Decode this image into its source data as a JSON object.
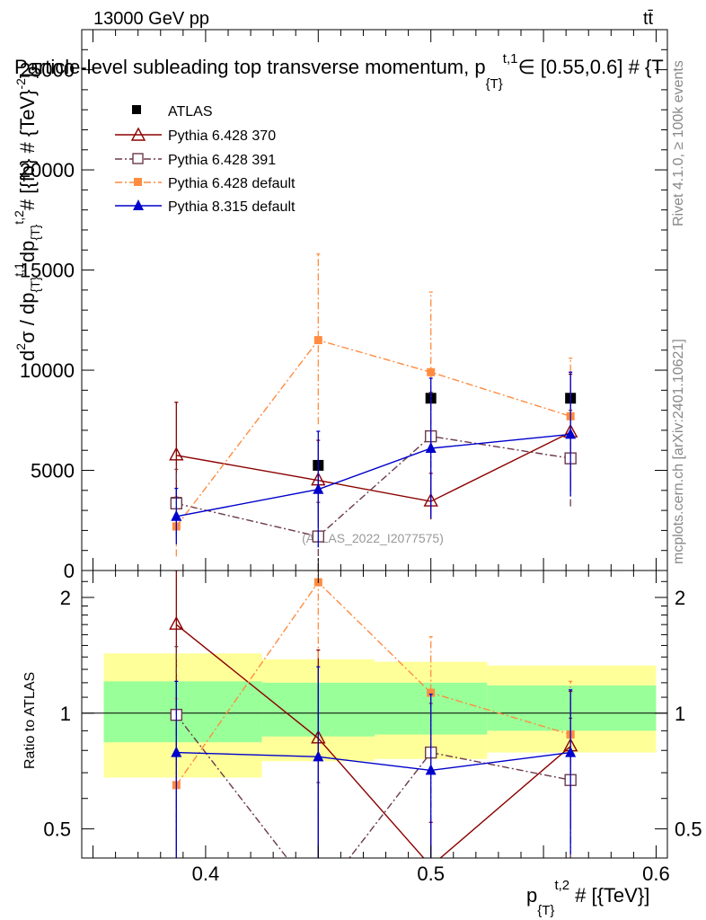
{
  "header": {
    "energy": "13000 GeV pp",
    "process": "tt̄",
    "title": "Particle-level subleading top transverse momentum, p",
    "title_sub": "{T}",
    "title_sup": "t,1",
    "title_tail": "∈ [0.55,0.6] # {T",
    "watermark": "(ATLAS_2022_I2077575)",
    "side_rivet": "Rivet 4.1.0, ≥ 100k events",
    "side_mcplots": "mcplots.cern.ch [arXiv:2401.10621]"
  },
  "main_axes": {
    "ylabel": "d²σ / dp_{T}^{t,1} dp_{T}^{t,2} # [{fb} # {TeV}^{-2}]",
    "ylabel_a": "d",
    "ylabel_b": "σ / dp",
    "ylabel_c": "dp",
    "ylabel_d": "# [{fb} # {TeV}",
    "yticks": [
      "0",
      "5000",
      "10000",
      "15000",
      "20000",
      "25000"
    ]
  },
  "ratio_axes": {
    "ylabel": "Ratio to ATLAS",
    "yticks": [
      "0.5",
      "1",
      "2"
    ]
  },
  "xaxis": {
    "label": "p",
    "label_sub": "{T}",
    "label_sup": "t,2",
    "label_tail": "# [{TeV}]",
    "ticks": [
      "0.4",
      "0.5",
      "0.6"
    ]
  },
  "legend": {
    "atlas": "ATLAS",
    "p370": "Pythia 6.428 370",
    "p391": "Pythia 6.428 391",
    "p6def": "Pythia 6.428 default",
    "p8def": "Pythia 8.315 default"
  },
  "chart_data": {
    "type": "scatter",
    "title": "Particle-level subleading top transverse momentum, p_{T}^{t,1} ∈ [0.55,0.6]",
    "xlabel": "p_{T}^{t,2} # [{TeV}]",
    "ylabel": "d²σ / dp_{T}^{t,1} dp_{T}^{t,2} # [{fb} # {TeV}^{-2}]",
    "xlim": [
      0.345,
      0.605
    ],
    "ylim": [
      0,
      27000
    ],
    "ratio_ylim": [
      0.42,
      2.35
    ],
    "bins": [
      [
        0.35,
        0.425
      ],
      [
        0.425,
        0.475
      ],
      [
        0.475,
        0.525
      ],
      [
        0.525,
        0.6
      ]
    ],
    "x": [
      0.387,
      0.45,
      0.5,
      0.562
    ],
    "series": [
      {
        "name": "ATLAS",
        "color": "#000000",
        "values": [
          3400,
          5250,
          8600,
          8600
        ],
        "err_lo": [
          0,
          0,
          0,
          0
        ],
        "err_hi": [
          0,
          0,
          0,
          0
        ],
        "band_inner": [
          [
            0.84,
            1.21
          ],
          [
            0.87,
            1.2
          ],
          [
            0.88,
            1.2
          ],
          [
            0.9,
            1.18
          ]
        ],
        "band_outer": [
          [
            0.68,
            1.43
          ],
          [
            0.75,
            1.38
          ],
          [
            0.76,
            1.36
          ],
          [
            0.79,
            1.33
          ]
        ],
        "ratio": [
          1,
          1,
          1,
          1
        ]
      },
      {
        "name": "Pythia 6.428 370",
        "color": "#8b0000",
        "values": [
          5750,
          4500,
          3450,
          6900
        ],
        "err_lo": [
          2600,
          2000,
          900,
          2800
        ],
        "err_hi": [
          2650,
          2000,
          1400,
          2900
        ],
        "ratio": [
          1.7,
          0.86,
          0.4,
          0.82
        ],
        "ratio_err_lo": [
          1.36,
          0.6,
          0.1,
          0.32
        ],
        "ratio_err_hi": [
          1.36,
          0.6,
          0.12,
          0.32
        ]
      },
      {
        "name": "Pythia 6.428 391",
        "color": "#6b3a4a",
        "values": [
          3350,
          1700,
          6700,
          5600
        ],
        "err_lo": [
          1700,
          1700,
          2300,
          2400
        ],
        "err_hi": [
          1700,
          1700,
          2200,
          2400
        ],
        "ratio": [
          0.99,
          0.33,
          0.79,
          0.67
        ],
        "ratio_err_lo": [
          0.5,
          0.33,
          0.27,
          0.3
        ],
        "ratio_err_hi": [
          0.5,
          0.33,
          0.27,
          0.3
        ]
      },
      {
        "name": "Pythia 6.428 default",
        "color": "#ff8c40",
        "values": [
          2200,
          11500,
          9900,
          7700
        ],
        "err_lo": [
          1500,
          4200,
          3900,
          2800
        ],
        "err_hi": [
          1500,
          4300,
          4000,
          2900
        ],
        "ratio": [
          0.65,
          2.19,
          1.13,
          0.88
        ],
        "ratio_err_lo": [
          0.44,
          0.8,
          0.45,
          0.33
        ],
        "ratio_err_hi": [
          0.44,
          0.8,
          0.45,
          0.33
        ]
      },
      {
        "name": "Pythia 8.315 default",
        "color": "#0000cc",
        "values": [
          2700,
          4050,
          6100,
          6800
        ],
        "err_lo": [
          1400,
          2900,
          3500,
          3100
        ],
        "err_hi": [
          1400,
          2900,
          3500,
          3100
        ],
        "ratio": [
          0.79,
          0.77,
          0.71,
          0.79
        ],
        "ratio_err_lo": [
          0.42,
          0.55,
          0.41,
          0.36
        ],
        "ratio_err_hi": [
          0.42,
          0.55,
          0.41,
          0.36
        ]
      }
    ]
  }
}
